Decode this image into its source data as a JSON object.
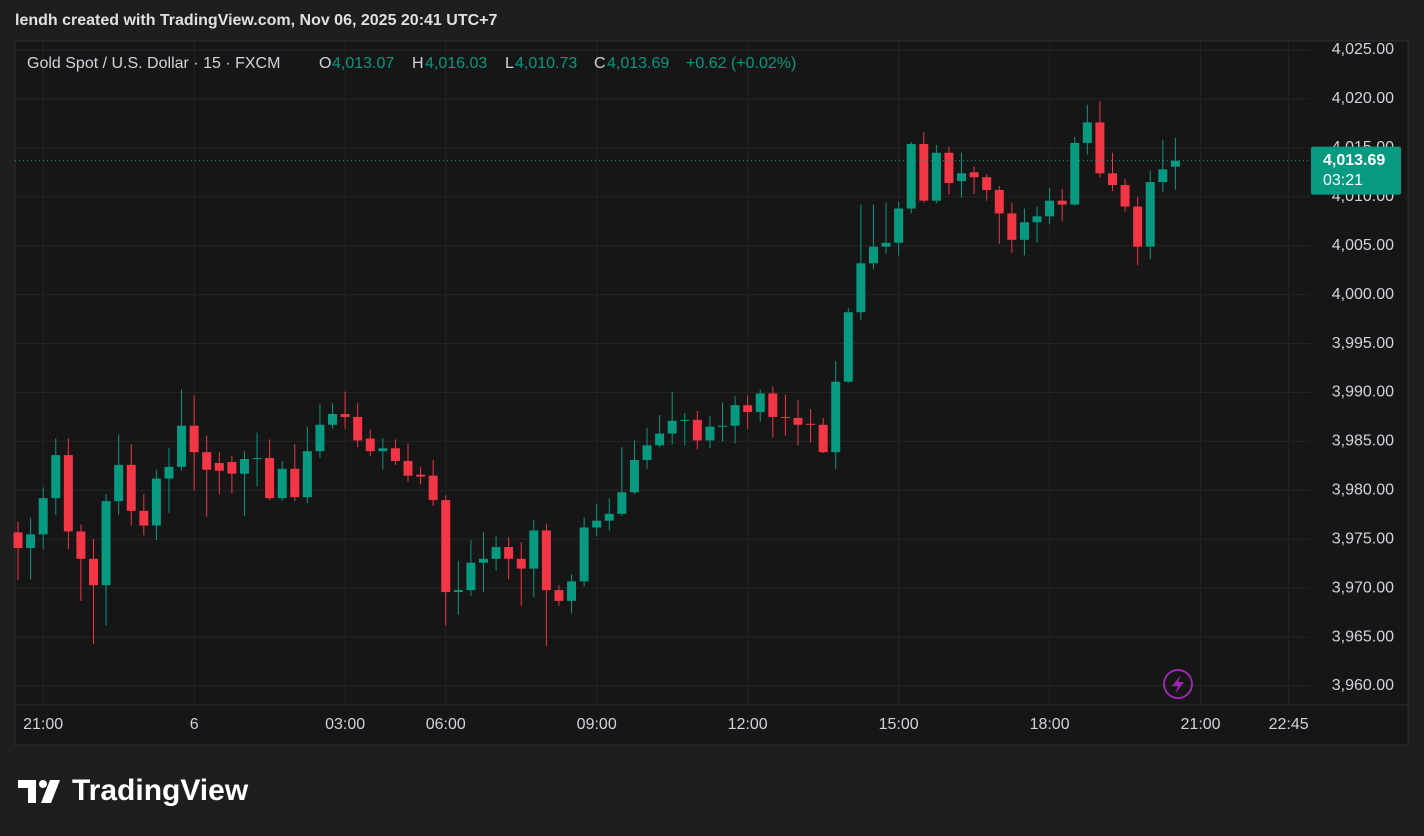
{
  "header": {
    "caption": "lendh created with TradingView.com, Nov 06, 2025 20:41 UTC+7"
  },
  "legend": {
    "symbol": "Gold Spot / U.S. Dollar · 15 · FXCM",
    "o_label": "O",
    "o": "4,013.07",
    "h_label": "H",
    "h": "4,016.03",
    "l_label": "L",
    "l": "4,010.73",
    "c_label": "C",
    "c": "4,013.69",
    "change": "+0.62 (+0.02%)"
  },
  "footer": {
    "brand": "TradingView"
  },
  "chart_data": {
    "type": "candlestick",
    "up_color": "#089981",
    "down_color": "#f23645",
    "grid": true,
    "open": [
      3975.7,
      3974.1,
      3975.5,
      3979.2,
      3983.6,
      3975.8,
      3973.0,
      3970.3,
      3978.9,
      3982.6,
      3977.9,
      3976.4,
      3981.2,
      3982.4,
      3986.6,
      3983.9,
      3982.8,
      3982.9,
      3981.7,
      3983.2,
      3983.3,
      3979.2,
      3982.2,
      3979.3,
      3984.0,
      3986.7,
      3987.8,
      3987.5,
      3985.3,
      3984.0,
      3984.3,
      3983.0,
      3981.6,
      3981.5,
      3979.0,
      3969.6,
      3969.8,
      3972.6,
      3973.0,
      3974.2,
      3973.0,
      3972.0,
      3975.9,
      3969.8,
      3968.7,
      3970.7,
      3976.2,
      3976.9,
      3977.6,
      3979.8,
      3983.1,
      3984.6,
      3985.8,
      3987.1,
      3987.2,
      3985.1,
      3986.5,
      3986.6,
      3988.7,
      3988.0,
      3989.9,
      3987.5,
      3987.4,
      3986.8,
      3986.7,
      3983.9,
      3991.1,
      3998.2,
      4003.2,
      4004.9,
      4005.3,
      4008.8,
      4015.4,
      4009.6,
      4014.5,
      4011.6,
      4012.5,
      4012.0,
      4010.7,
      4008.3,
      4005.6,
      4007.4,
      4008.0,
      4009.6,
      4009.2,
      4015.5,
      4017.6,
      4012.4,
      4011.2,
      4009.0,
      4004.9,
      4011.5,
      4013.07
    ],
    "high": [
      3976.8,
      3977.2,
      3980.3,
      3985.3,
      3985.3,
      3976.5,
      3975.0,
      3979.6,
      3985.7,
      3984.7,
      3979.6,
      3982.1,
      3984.3,
      3990.3,
      3989.7,
      3985.6,
      3983.9,
      3983.5,
      3984.0,
      3985.9,
      3985.2,
      3983.0,
      3984.7,
      3986.5,
      3988.8,
      3988.9,
      3990.1,
      3988.9,
      3986.2,
      3985.3,
      3985.2,
      3984.8,
      3982.4,
      3983.1,
      3979.5,
      3972.8,
      3974.9,
      3975.7,
      3975.3,
      3975.2,
      3974.7,
      3977.0,
      3976.6,
      3970.3,
      3971.4,
      3977.2,
      3978.6,
      3979.2,
      3984.4,
      3985.1,
      3986.4,
      3987.7,
      3990.1,
      3987.9,
      3988.1,
      3987.6,
      3989.0,
      3989.6,
      3989.7,
      3990.3,
      3990.6,
      3989.8,
      3989.2,
      3988.3,
      3987.4,
      3993.2,
      3998.6,
      4009.2,
      4009.2,
      4009.4,
      4009.5,
      4015.6,
      4016.6,
      4015.3,
      4015.1,
      4014.5,
      4013.1,
      4012.3,
      4011.1,
      4009.4,
      4008.8,
      4009.0,
      4010.9,
      4010.8,
      4016.1,
      4019.4,
      4019.8,
      4014.5,
      4011.8,
      4010.0,
      4012.7,
      4015.8,
      4016.03
    ],
    "low": [
      3970.8,
      3970.9,
      3974.0,
      3977.5,
      3974.0,
      3968.7,
      3964.3,
      3966.2,
      3977.5,
      3976.4,
      3975.4,
      3974.9,
      3977.7,
      3982.0,
      3980.0,
      3977.3,
      3979.6,
      3979.7,
      3977.4,
      3980.4,
      3979.0,
      3978.9,
      3978.9,
      3978.7,
      3983.3,
      3986.3,
      3986.3,
      3984.4,
      3983.5,
      3982.1,
      3982.6,
      3980.9,
      3980.6,
      3978.4,
      3966.2,
      3967.3,
      3969.2,
      3969.6,
      3971.8,
      3970.9,
      3968.2,
      3969.1,
      3964.1,
      3968.2,
      3967.4,
      3970.2,
      3975.3,
      3975.9,
      3977.4,
      3979.6,
      3982.2,
      3984.4,
      3984.7,
      3984.6,
      3984.2,
      3984.3,
      3985.0,
      3984.8,
      3986.3,
      3987.0,
      3985.4,
      3985.6,
      3984.6,
      3984.9,
      3983.8,
      3982.2,
      3991.0,
      3997.4,
      4002.6,
      4004.2,
      4004.0,
      4008.3,
      4009.4,
      4009.3,
      4010.2,
      4009.9,
      4010.3,
      4009.6,
      4005.2,
      4004.3,
      4004.0,
      4005.3,
      4007.2,
      4007.5,
      4009.1,
      4014.3,
      4012.0,
      4010.6,
      4008.5,
      4003.0,
      4003.6,
      4010.5,
      4010.73
    ],
    "close": [
      3974.1,
      3975.5,
      3979.2,
      3983.6,
      3975.8,
      3973.0,
      3970.3,
      3978.9,
      3982.6,
      3977.9,
      3976.4,
      3981.2,
      3982.4,
      3986.6,
      3983.9,
      3982.1,
      3982.0,
      3981.7,
      3983.2,
      3983.3,
      3979.2,
      3982.2,
      3979.3,
      3984.0,
      3986.7,
      3987.8,
      3987.5,
      3985.1,
      3984.0,
      3984.3,
      3983.0,
      3981.5,
      3981.4,
      3979.0,
      3969.6,
      3969.8,
      3972.6,
      3973.0,
      3974.2,
      3973.0,
      3972.0,
      3975.9,
      3969.8,
      3968.7,
      3970.7,
      3976.2,
      3976.9,
      3977.6,
      3979.8,
      3983.1,
      3984.6,
      3985.8,
      3987.1,
      3987.2,
      3985.1,
      3986.5,
      3986.6,
      3988.7,
      3988.0,
      3989.9,
      3987.5,
      3987.4,
      3986.7,
      3986.7,
      3983.9,
      3991.1,
      3998.2,
      4003.2,
      4004.9,
      4005.3,
      4008.8,
      4015.4,
      4009.6,
      4014.5,
      4011.4,
      4012.4,
      4012.0,
      4010.7,
      4008.3,
      4005.6,
      4007.4,
      4008.0,
      4009.6,
      4009.2,
      4015.5,
      4017.6,
      4012.4,
      4011.2,
      4009.0,
      4004.9,
      4011.5,
      4012.8,
      4013.69
    ],
    "last_price": {
      "value": 4013.69,
      "label": "4,013.69",
      "countdown": "03:21"
    },
    "ylim": [
      3958.06,
      4025.92
    ],
    "yticks": [
      {
        "value": 3960,
        "label": "3,960.00"
      },
      {
        "value": 3965,
        "label": "3,965.00"
      },
      {
        "value": 3970,
        "label": "3,970.00"
      },
      {
        "value": 3975,
        "label": "3,975.00"
      },
      {
        "value": 3980,
        "label": "3,980.00"
      },
      {
        "value": 3985,
        "label": "3,985.00"
      },
      {
        "value": 3990,
        "label": "3,990.00"
      },
      {
        "value": 3995,
        "label": "3,995.00"
      },
      {
        "value": 4000,
        "label": "4,000.00"
      },
      {
        "value": 4005,
        "label": "4,005.00"
      },
      {
        "value": 4010,
        "label": "4,010.00"
      },
      {
        "value": 4015,
        "label": "4,015.00"
      },
      {
        "value": 4020,
        "label": "4,020.00"
      },
      {
        "value": 4025,
        "label": "4,025.00"
      }
    ],
    "xlim": [
      -0.24,
      102.7
    ],
    "xticks": [
      {
        "value": 2,
        "label": "21:00"
      },
      {
        "value": 14,
        "label": "6"
      },
      {
        "value": 26,
        "label": "03:00"
      },
      {
        "value": 34,
        "label": "06:00"
      },
      {
        "value": 46,
        "label": "09:00"
      },
      {
        "value": 58,
        "label": "12:00"
      },
      {
        "value": 70,
        "label": "15:00"
      },
      {
        "value": 82,
        "label": "18:00"
      },
      {
        "value": 94,
        "label": "21:00"
      },
      {
        "value": 101,
        "label": "22:45"
      }
    ]
  }
}
